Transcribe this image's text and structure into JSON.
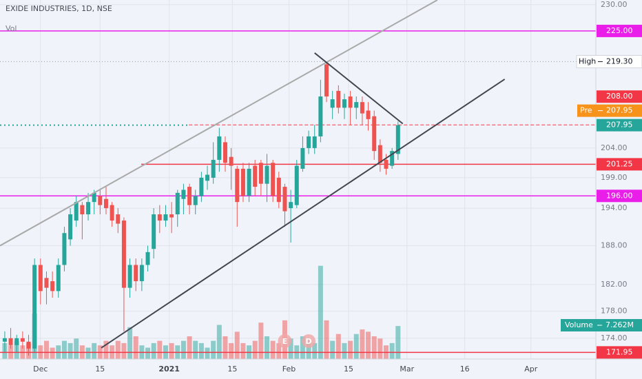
{
  "chart_data": {
    "type": "candlestick",
    "title": "EXIDE INDUSTRIES, 1D, NSE",
    "indicator": "Vol",
    "log_scale": true,
    "grid": true,
    "up_color": "#26a69a",
    "down_color": "#ef5350",
    "xlim": [
      -0.8,
      99.2
    ],
    "xticks": [
      {
        "value": 6,
        "label": "Dec"
      },
      {
        "value": 16,
        "label": "15"
      },
      {
        "value": 27.6,
        "label": "2021"
      },
      {
        "value": 38.2,
        "label": "15"
      },
      {
        "value": 47.7,
        "label": "Feb"
      },
      {
        "value": 57.7,
        "label": "15"
      },
      {
        "value": 67.5,
        "label": "Mar"
      },
      {
        "value": 77.2,
        "label": "16"
      },
      {
        "value": 88.3,
        "label": "Apr"
      }
    ],
    "ylim": [
      171,
      230.9
    ],
    "yticks": [
      {
        "value": 174,
        "label": "174.00"
      },
      {
        "value": 178,
        "label": "178.00"
      },
      {
        "value": 182,
        "label": "182.00"
      },
      {
        "value": 188,
        "label": "188.00"
      },
      {
        "value": 194,
        "label": "194.00"
      },
      {
        "value": 199,
        "label": "199.00"
      },
      {
        "value": 204,
        "label": "204.00"
      },
      {
        "value": 230,
        "label": "230.00"
      }
    ],
    "open": [
      173.5,
      174,
      173,
      174,
      173.5,
      172.5,
      185,
      183,
      182.5,
      181,
      185,
      189,
      192,
      194.5,
      193,
      195,
      196,
      195.5,
      194.5,
      193,
      192,
      181.5,
      185,
      182.5,
      185,
      187.5,
      193,
      192,
      193,
      193,
      195.5,
      197.5,
      194.5,
      196,
      198.5,
      199,
      202,
      205,
      202.5,
      200.5,
      200.5,
      196,
      201,
      201.5,
      198,
      201.5,
      199,
      197.5,
      194,
      194.5,
      200.5,
      204,
      204,
      206,
      218.8,
      211,
      214,
      211,
      213,
      211,
      212,
      210.5,
      209.5,
      204.5,
      202,
      201,
      203
    ],
    "high": [
      175,
      175.5,
      174.5,
      175,
      174.5,
      186,
      186,
      184,
      184,
      186,
      191,
      194,
      196,
      195,
      196.5,
      197,
      197,
      197.5,
      195,
      194,
      192.5,
      186,
      186,
      186,
      188,
      194,
      194.5,
      194.5,
      195,
      197,
      198,
      198,
      197,
      200,
      201,
      205,
      207.5,
      206,
      204,
      201,
      201.5,
      201.5,
      202,
      202,
      203,
      202,
      200,
      198,
      197,
      202,
      206,
      207,
      208,
      216,
      219.3,
      214,
      215,
      213.5,
      214,
      213,
      213,
      212,
      210.5,
      205.5,
      203,
      204,
      208.6
    ],
    "low": [
      172,
      172.5,
      172,
      172.5,
      171.5,
      172,
      179,
      179,
      180,
      180,
      184,
      188,
      191,
      189,
      192,
      193,
      193,
      193,
      191,
      190,
      175,
      180,
      181,
      181,
      184,
      186,
      190,
      191,
      190,
      191,
      193,
      193,
      193,
      195,
      197,
      198,
      200,
      200,
      197,
      191,
      195,
      195,
      196,
      196,
      195,
      195,
      194,
      191,
      188.5,
      194,
      200,
      203,
      203,
      205,
      212,
      209,
      210,
      209,
      208,
      209,
      208,
      207,
      202,
      200,
      199.5,
      200.5,
      202
    ],
    "close": [
      174,
      173,
      174,
      173.5,
      172.5,
      185,
      181,
      181.5,
      181,
      185,
      190,
      193,
      195,
      193,
      195,
      196.5,
      194.5,
      194,
      192,
      191.5,
      181.5,
      185,
      182.5,
      185,
      187,
      193,
      192,
      193,
      192.5,
      196.5,
      197,
      194.5,
      196,
      199,
      199.5,
      202,
      206,
      201.5,
      201,
      195,
      196,
      200.5,
      197.5,
      198,
      201,
      196,
      195,
      193.5,
      195,
      201,
      204,
      206,
      206,
      213,
      213,
      212.5,
      211,
      212.5,
      211,
      212,
      210,
      209,
      203.5,
      201.5,
      200.5,
      203.5,
      207.95
    ],
    "volume": {
      "name": "Volume",
      "values": [
        3.5,
        3,
        4,
        3,
        3.5,
        10,
        3,
        4,
        2.5,
        3,
        4,
        3.5,
        4.5,
        3,
        2.5,
        3.5,
        3,
        4,
        3,
        4,
        3.5,
        7,
        5,
        3,
        2.5,
        3.5,
        4,
        3,
        3.5,
        3,
        4,
        5,
        4,
        3.5,
        2.5,
        4,
        7.5,
        5,
        3.5,
        6,
        3.5,
        3,
        4,
        8,
        5,
        4,
        3.5,
        8.5,
        4.5,
        3,
        5,
        4,
        3.5,
        20.5,
        8.5,
        4,
        5.5,
        3.5,
        4,
        5.5,
        6.5,
        6,
        5,
        4.5,
        3,
        3.5,
        7.262
      ],
      "value_labels": [
        null,
        null,
        null,
        null,
        null,
        null,
        null,
        null,
        null,
        null,
        null,
        null,
        null,
        null,
        null,
        null,
        null,
        null,
        null,
        null,
        null,
        null,
        null,
        null,
        null,
        null,
        null,
        null,
        null,
        null,
        null,
        null,
        null,
        null,
        null,
        null,
        null,
        null,
        null,
        null,
        null,
        null,
        null,
        null,
        null,
        null,
        null,
        null,
        null,
        null,
        null,
        null,
        null,
        null,
        null,
        null,
        null,
        null,
        null,
        null,
        null,
        null,
        null,
        null,
        null,
        null,
        "7.262M"
      ]
    },
    "levels": [
      {
        "value": 225,
        "label": "225.00",
        "color": "#e91ee9",
        "style": "solid",
        "start": -0.8
      },
      {
        "name": "High",
        "value": 219.3,
        "label": "219.30",
        "color": "#9598a1",
        "style": "dotted",
        "start": -0.8
      },
      {
        "value": 208,
        "label": "208.00",
        "color": "#f23645",
        "style": "dashed",
        "start": 30.9
      },
      {
        "value": 201.25,
        "label": "201.25",
        "color": "#f23645",
        "style": "solid",
        "start": 22.9
      },
      {
        "value": 196,
        "label": "196.00",
        "color": "#e91ee9",
        "style": "solid",
        "start": -0.8
      },
      {
        "value": 171.95,
        "label": "171.95",
        "color": "#f23645",
        "style": "solid",
        "start": -0.8
      }
    ],
    "pre": {
      "name": "Pre",
      "value": 207.95,
      "label": "207.95",
      "color": "#f7931a"
    },
    "drawings": [
      {
        "color": "#a9a9a9",
        "points": [
          [
            -0.8,
            188
          ],
          [
            72.6,
            230.9
          ]
        ]
      },
      {
        "color": "#434651",
        "points": [
          [
            16.2,
            172.6
          ],
          [
            83.9,
            216.1
          ]
        ]
      },
      {
        "color": "#434651",
        "points": [
          [
            52,
            220.9
          ],
          [
            66.8,
            208.2
          ]
        ]
      }
    ],
    "events": [
      {
        "label": "E",
        "x": 47
      },
      {
        "label": "D",
        "x": 51
      }
    ]
  }
}
